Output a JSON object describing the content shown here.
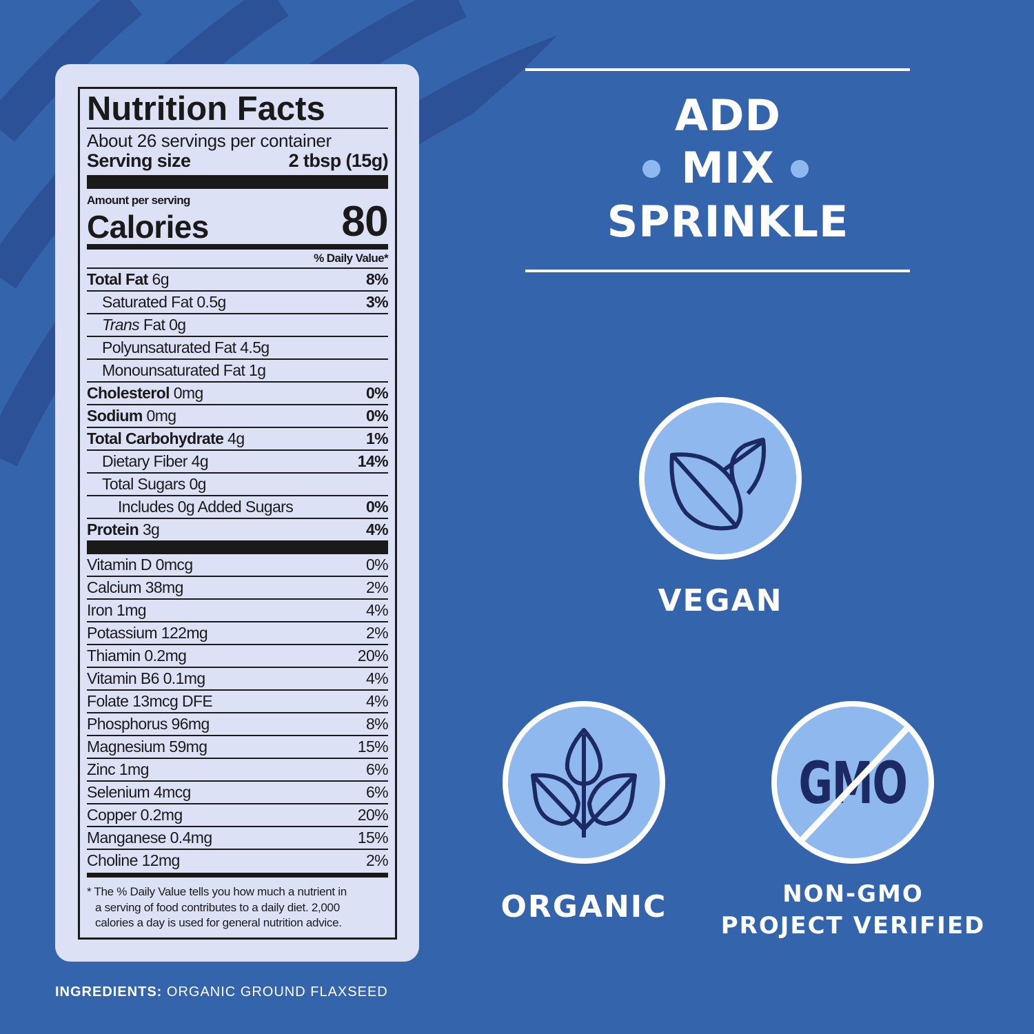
{
  "colors": {
    "background": "#3464ac",
    "stripe": "#2c5196",
    "label_bg": "#dde1f6",
    "badge_fill": "#8fb8ee",
    "icon_stroke": "#1b2a62"
  },
  "nutrition": {
    "title": "Nutrition Facts",
    "servings": "About 26 servings per container",
    "serving_size_label": "Serving size",
    "serving_size_value": "2 tbsp (15g)",
    "amount_per_serving": "Amount per serving",
    "calories_label": "Calories",
    "calories_value": "80",
    "dv_header": "% Daily Value*",
    "rows": [
      {
        "bold": "Total Fat",
        "rest": " 6g",
        "pct": "8%"
      },
      {
        "bold": "",
        "rest": "Saturated Fat 0.5g",
        "pct": "3%"
      },
      {
        "italic": "Trans",
        "rest": " Fat 0g",
        "pct": ""
      },
      {
        "bold": "",
        "rest": "Polyunsaturated Fat 4.5g",
        "pct": ""
      },
      {
        "bold": "",
        "rest": "Monounsaturated Fat 1g",
        "pct": ""
      },
      {
        "bold": "Cholesterol",
        "rest": " 0mg",
        "pct": "0%"
      },
      {
        "bold": "Sodium",
        "rest": " 0mg",
        "pct": "0%"
      },
      {
        "bold": "Total Carbohydrate",
        "rest": " 4g",
        "pct": "1%"
      },
      {
        "bold": "",
        "rest": "Dietary Fiber 4g",
        "pct": "14%"
      },
      {
        "bold": "",
        "rest": "Total Sugars 0g",
        "pct": ""
      },
      {
        "bold": "",
        "rest": "Includes 0g Added Sugars",
        "pct": "0%"
      },
      {
        "bold": "Protein",
        "rest": " 3g",
        "pct": "4%"
      }
    ],
    "vitamins": [
      {
        "name": "Vitamin D 0mcg",
        "pct": "0%"
      },
      {
        "name": "Calcium 38mg",
        "pct": "2%"
      },
      {
        "name": "Iron 1mg",
        "pct": "4%"
      },
      {
        "name": "Potassium 122mg",
        "pct": "2%"
      },
      {
        "name": "Thiamin 0.2mg",
        "pct": "20%"
      },
      {
        "name": "Vitamin B6 0.1mg",
        "pct": "4%"
      },
      {
        "name": "Folate 13mcg DFE",
        "pct": "4%"
      },
      {
        "name": "Phosphorus 96mg",
        "pct": "8%"
      },
      {
        "name": "Magnesium 59mg",
        "pct": "15%"
      },
      {
        "name": "Zinc 1mg",
        "pct": "6%"
      },
      {
        "name": "Selenium 4mcg",
        "pct": "6%"
      },
      {
        "name": "Copper 0.2mg",
        "pct": "20%"
      },
      {
        "name": "Manganese 0.4mg",
        "pct": "15%"
      },
      {
        "name": "Choline 12mg",
        "pct": "2%"
      }
    ],
    "footnote": [
      "* The % Daily Value tells you how much a nutrient in",
      "a serving of food contributes to a daily diet. 2,000",
      "calories a day is used for general nutrition advice."
    ]
  },
  "ingredients": {
    "label": "INGREDIENTS:",
    "value": " ORGANIC GROUND FLAXSEED"
  },
  "slogan": [
    "ADD",
    "MIX",
    "SPRINKLE"
  ],
  "badges": {
    "vegan": {
      "label": "VEGAN",
      "icon": "leaves-icon"
    },
    "organic": {
      "label": "ORGANIC",
      "icon": "sprout-icon"
    },
    "non_gmo": {
      "label_line1": "NON-GMO",
      "label_line2": "PROJECT VERIFIED",
      "icon_text": "GMO",
      "icon": "no-gmo-icon"
    }
  }
}
